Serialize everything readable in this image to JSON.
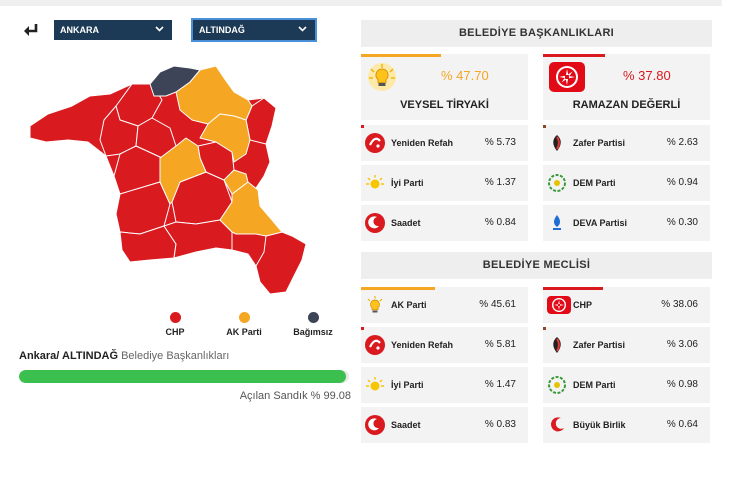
{
  "header": {
    "province_select": "ANKARA",
    "district_select": "ALTINDAĞ"
  },
  "map_legend": [
    {
      "label": "CHP",
      "color": "#d91a1f"
    },
    {
      "label": "AK Parti",
      "color": "#f5a623"
    },
    {
      "label": "Bağımsız",
      "color": "#3d4457"
    }
  ],
  "summary": {
    "location": "Ankara/ ALTINDAĞ",
    "subtitle": "Belediye Başkanlıkları",
    "progress_percent": 99.08,
    "opened_text": "Açılan Sandık % 99.08"
  },
  "mayoral": {
    "section_title": "BELEDİYE BAŞKANLIKLARI",
    "leaders": [
      {
        "name": "VEYSEL TİRYAKİ",
        "pct": "% 47.70",
        "party_icon": "ak-parti-bulb-icon",
        "color": "#f5a623"
      },
      {
        "name": "RAMAZAN DEĞERLİ",
        "pct": "% 37.80",
        "party_icon": "chp-arrows-icon",
        "color": "#d91a1f"
      }
    ],
    "others": [
      {
        "party": "Yeniden Refah",
        "pct": "% 5.73",
        "icon": "yeniden-refah-icon"
      },
      {
        "party": "Zafer Partisi",
        "pct": "% 2.63",
        "icon": "zafer-partisi-icon"
      },
      {
        "party": "İyi Parti",
        "pct": "% 1.37",
        "icon": "iyi-parti-sun-icon"
      },
      {
        "party": "DEM Parti",
        "pct": "% 0.94",
        "icon": "dem-parti-icon"
      },
      {
        "party": "Saadet",
        "pct": "% 0.84",
        "icon": "saadet-icon"
      },
      {
        "party": "DEVA Partisi",
        "pct": "% 0.30",
        "icon": "deva-partisi-icon"
      }
    ]
  },
  "council": {
    "section_title": "BELEDİYE MECLİSİ",
    "rows": [
      {
        "party": "AK Parti",
        "pct": "% 45.61",
        "icon": "ak-parti-bulb-icon"
      },
      {
        "party": "CHP",
        "pct": "% 38.06",
        "icon": "chp-arrows-icon"
      },
      {
        "party": "Yeniden Refah",
        "pct": "% 5.81",
        "icon": "yeniden-refah-icon"
      },
      {
        "party": "Zafer Partisi",
        "pct": "% 3.06",
        "icon": "zafer-partisi-icon"
      },
      {
        "party": "İyi Parti",
        "pct": "% 1.47",
        "icon": "iyi-parti-sun-icon"
      },
      {
        "party": "DEM Parti",
        "pct": "% 0.98",
        "icon": "dem-parti-icon"
      },
      {
        "party": "Saadet",
        "pct": "% 0.83",
        "icon": "saadet-icon"
      },
      {
        "party": "Büyük Birlik",
        "pct": "% 0.64",
        "icon": "buyuk-birlik-icon"
      }
    ]
  }
}
